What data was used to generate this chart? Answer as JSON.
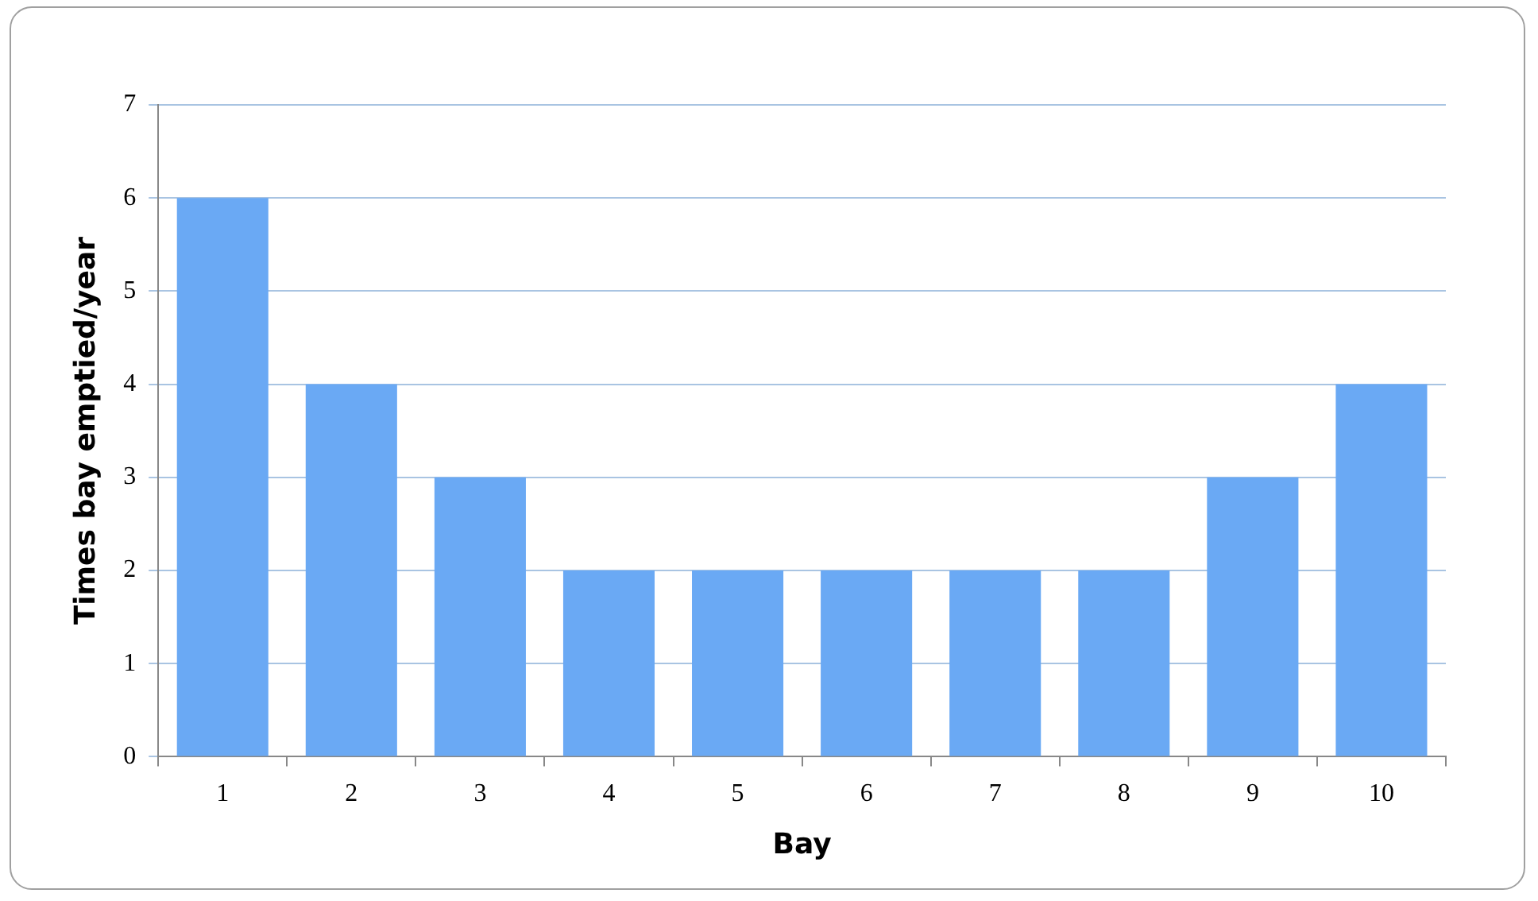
{
  "chart_data": {
    "type": "bar",
    "xlabel": "Bay",
    "ylabel": "Times bay emptied/year",
    "categories": [
      "1",
      "2",
      "3",
      "4",
      "5",
      "6",
      "7",
      "8",
      "9",
      "10"
    ],
    "values": [
      6,
      4,
      3,
      2,
      2,
      2,
      2,
      2,
      3,
      4
    ],
    "color": "#6aa9f4",
    "ylim": [
      0,
      7
    ],
    "yticks": [
      0,
      1,
      2,
      3,
      4,
      5,
      6,
      7
    ],
    "grid": "y"
  }
}
